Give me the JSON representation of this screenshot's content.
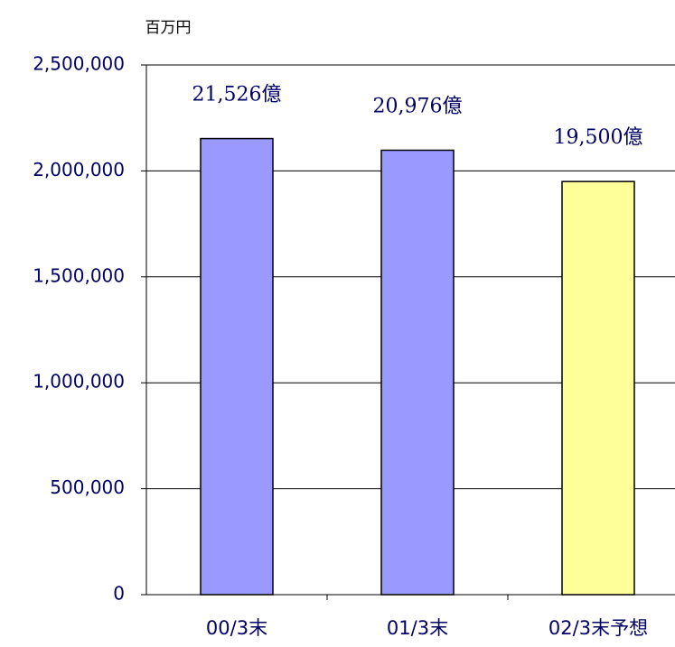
{
  "chart_data": {
    "type": "bar",
    "ylabel": "百万円",
    "categories": [
      "00/3末",
      "01/3末",
      "02/3末予想"
    ],
    "values": [
      2152600,
      2097600,
      1950000
    ],
    "value_labels": [
      "21,526億",
      "20,976億",
      "19,500億"
    ],
    "colors": [
      "#9999ff",
      "#9999ff",
      "#ffff99"
    ],
    "ylim": [
      0,
      2500000
    ],
    "yticks": [
      0,
      {
        "value": 500000,
        "label": "500,000"
      },
      {
        "value": 1000000,
        "label": "1,000,000"
      },
      {
        "value": 1500000,
        "label": "1,500,000"
      },
      {
        "value": 2000000,
        "label": "2,000,000"
      },
      {
        "value": 2500000,
        "label": "2,500,000"
      }
    ],
    "grid": true
  }
}
